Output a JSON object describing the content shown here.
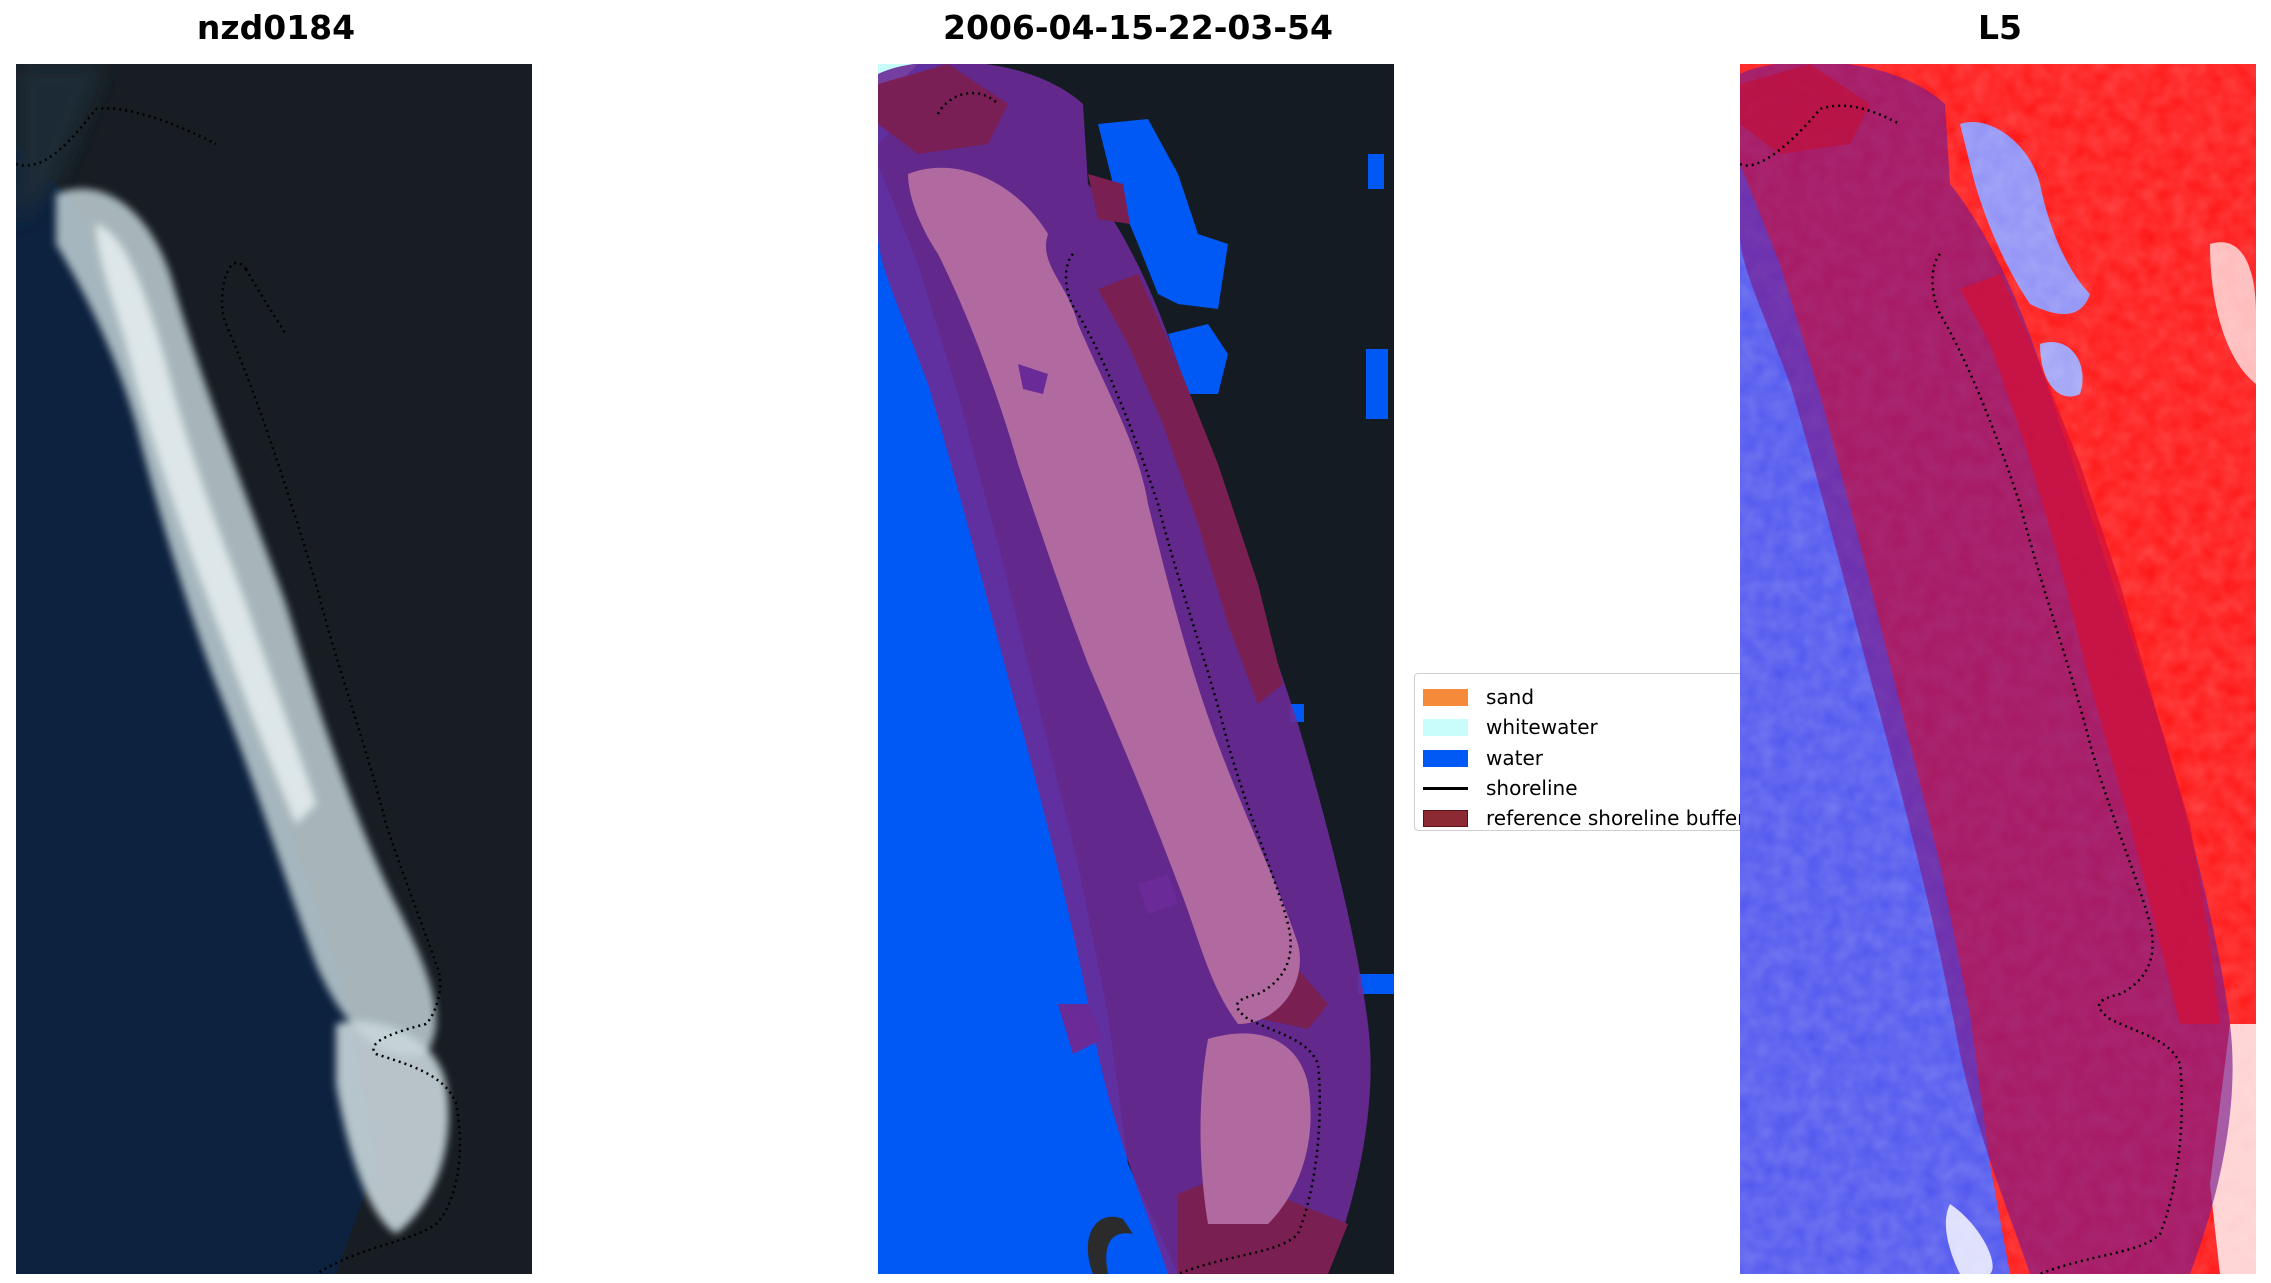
{
  "panels": [
    {
      "title": "nzd0184"
    },
    {
      "title": "2006-04-15-22-03-54"
    },
    {
      "title": "L5"
    }
  ],
  "legend": {
    "items": [
      {
        "label": "sand",
        "color": "#f58a3a",
        "type": "patch"
      },
      {
        "label": "whitewater",
        "color": "#c8fdfc",
        "type": "patch"
      },
      {
        "label": "water",
        "color": "#0059f5",
        "type": "patch"
      },
      {
        "label": "shoreline",
        "color": "#000000",
        "type": "line"
      },
      {
        "label": "reference shoreline buffer",
        "color": "#8b2a33",
        "type": "patch"
      }
    ]
  },
  "colors": {
    "dark_ocean": "#0c1f3a",
    "dark_land": "#141b22",
    "surf": "#c9d7da",
    "water": "#0059f5",
    "buffer": "#7a1f52",
    "sand_overlay": "#b06aa0",
    "index_blue": "#5a5cf0",
    "index_red": "#ff1515"
  }
}
